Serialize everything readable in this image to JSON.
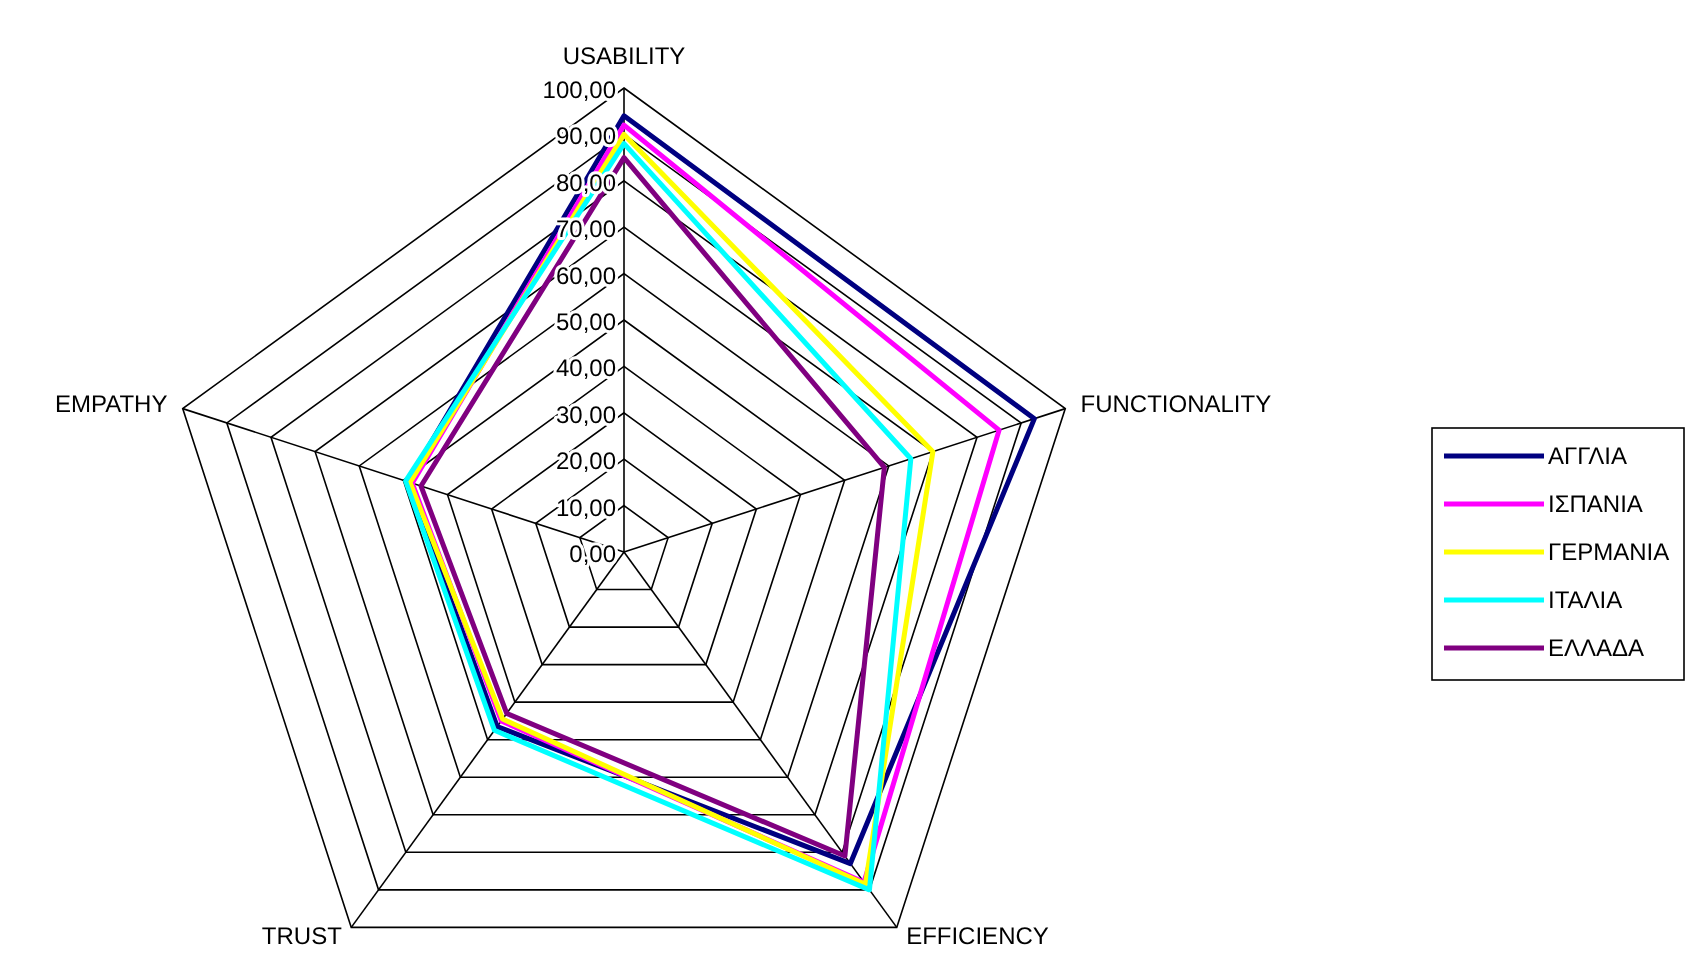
{
  "chart_data": {
    "type": "radar",
    "categories": [
      "USABILITY",
      "FUNCTIONALITY",
      "EFFICIENCY",
      "TRUST",
      "EMPATHY"
    ],
    "ylim": [
      0,
      100
    ],
    "yticks": [
      {
        "value": 0,
        "label": "0,00"
      },
      {
        "value": 10,
        "label": "10,00"
      },
      {
        "value": 20,
        "label": "20,00"
      },
      {
        "value": 30,
        "label": "30,00"
      },
      {
        "value": 40,
        "label": "40,00"
      },
      {
        "value": 50,
        "label": "50,00"
      },
      {
        "value": 60,
        "label": "60,00"
      },
      {
        "value": 70,
        "label": "70,00"
      },
      {
        "value": 80,
        "label": "80,00"
      },
      {
        "value": 90,
        "label": "90,00"
      },
      {
        "value": 100,
        "label": "100,00"
      }
    ],
    "grid": true,
    "legend": "right",
    "marker": "none",
    "series": [
      {
        "name": "ΑΓΓΛΙΑ",
        "color": "#000080",
        "values": [
          94,
          93,
          83,
          46.5,
          49
        ]
      },
      {
        "name": "ΙΣΠΑΝΙΑ",
        "color": "#ff00ff",
        "values": [
          92,
          85,
          88,
          45,
          48
        ]
      },
      {
        "name": "ΓΕΡΜΑΝΙΑ",
        "color": "#ffff00",
        "values": [
          90,
          70,
          88.5,
          44.5,
          48.5
        ]
      },
      {
        "name": "ΙΤΑΛΙΑ",
        "color": "#00ffff",
        "values": [
          88,
          65,
          90,
          47.5,
          49.5
        ]
      },
      {
        "name": "ΕΛΛΑΔΑ",
        "color": "#800080",
        "values": [
          85,
          59,
          81,
          43,
          46
        ]
      }
    ]
  }
}
